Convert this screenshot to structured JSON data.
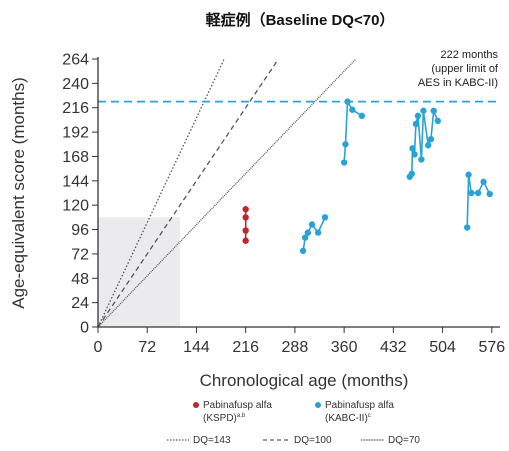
{
  "chart_data": {
    "type": "scatter",
    "title": "軽症例（Baseline DQ<70）",
    "xlabel": "Chronological age (months)",
    "ylabel": "Age-equivalent score (months)",
    "xlim": [
      0,
      588
    ],
    "ylim": [
      0,
      264
    ],
    "xticks": [
      "0",
      "72",
      "144",
      "216",
      "288",
      "360",
      "432",
      "504",
      "576"
    ],
    "yticks": [
      "0",
      "24",
      "48",
      "72",
      "96",
      "120",
      "144",
      "168",
      "192",
      "216",
      "240",
      "264"
    ],
    "reference_lines": [
      {
        "name": "DQ=143",
        "slope": 1.43,
        "style": "dotted",
        "legend_label": "DQ=143"
      },
      {
        "name": "DQ=100",
        "slope": 1.0,
        "style": "dashed",
        "legend_label": "DQ=100"
      },
      {
        "name": "DQ=70",
        "slope": 0.7,
        "style": "dot-fine",
        "legend_label": "DQ=70"
      }
    ],
    "upper_limit": {
      "y": 222,
      "color": "#29a3d6",
      "label_lines": [
        "222 months",
        "(upper limit of",
        "AES in KABC-II)"
      ]
    },
    "shaded_region": {
      "x": [
        0,
        120
      ],
      "y": [
        0,
        108
      ],
      "color": "#ebebed"
    },
    "series": [
      {
        "name": "Pabinafusp alfa (KSPD)",
        "legend_lines": [
          "Pabinafusp alfa",
          "(KSPD)"
        ],
        "legend_sup": "a,b",
        "color": "#c0272d",
        "patients": [
          [
            [
              216,
              85
            ],
            [
              216,
              95
            ],
            [
              216,
              108
            ],
            [
              216,
              116
            ]
          ]
        ]
      },
      {
        "name": "Pabinafusp alfa (KABC-II)",
        "legend_lines": [
          "Pabinafusp alfa",
          "(KABC-II)"
        ],
        "legend_sup": "c",
        "color": "#29a3d6",
        "patients": [
          [
            [
              300,
              75
            ],
            [
              303,
              88
            ],
            [
              307,
              93
            ],
            [
              313,
              101
            ],
            [
              322,
              93
            ],
            [
              332,
              108
            ]
          ],
          [
            [
              360,
              162
            ],
            [
              362,
              180
            ],
            [
              365,
              222
            ],
            [
              372,
              214
            ],
            [
              386,
              208
            ]
          ],
          [
            [
              456,
              148
            ],
            [
              459,
              151
            ],
            [
              460,
              176
            ],
            [
              463,
              170
            ],
            [
              465,
              200
            ],
            [
              468,
              208
            ],
            [
              473,
              165
            ],
            [
              476,
              213
            ],
            [
              483,
              179
            ],
            [
              487,
              185
            ],
            [
              491,
              213
            ],
            [
              497,
              203
            ]
          ],
          [
            [
              540,
              98
            ],
            [
              542,
              150
            ],
            [
              546,
              132
            ],
            [
              556,
              132
            ],
            [
              564,
              143
            ],
            [
              573,
              131
            ]
          ]
        ]
      }
    ],
    "legend": {
      "placement": "bottom"
    }
  }
}
